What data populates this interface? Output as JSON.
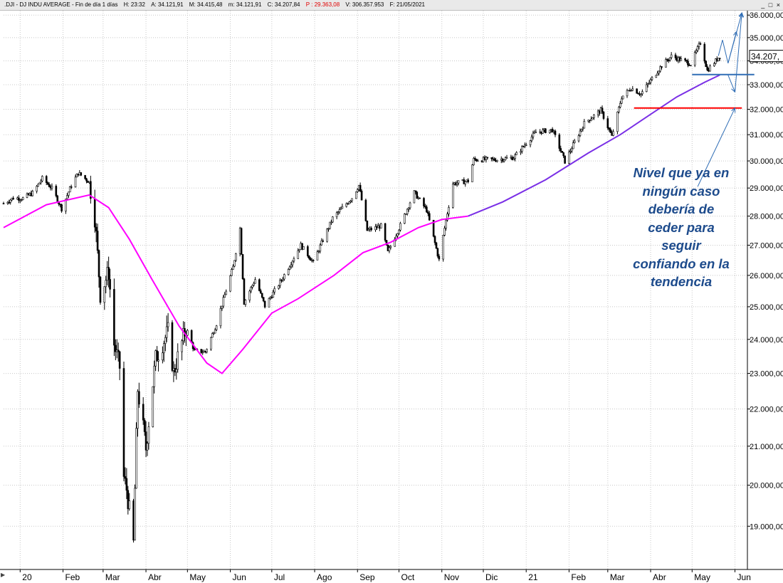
{
  "header": {
    "symbol": ".DJI - DJ INDU AVERAGE - Fin de día 1 días",
    "high": "H: 23:32",
    "ask": "A: 34.121,91",
    "max": "M: 34.415,48",
    "min": "m: 34.121,91",
    "close": "C: 34.207,84",
    "p": "P : 29.363,08",
    "volume": "V: 306.357.953",
    "date": "F: 21/05/2021",
    "p_color": "#e00000"
  },
  "window_controls": {
    "minimize": "_",
    "restore": "□",
    "close": "×"
  },
  "annotation": {
    "text_lines": [
      "Nivel que ya en",
      "ningún caso",
      "debería de",
      "ceder para",
      "seguir",
      "confiando en la",
      "tendencia"
    ],
    "color": "#1d4b8c"
  },
  "chart_data": {
    "type": "candlestick",
    "last_price_label": "34.207,",
    "ylim": [
      18000,
      36200
    ],
    "y_ticks": [
      19000,
      20000,
      21000,
      22000,
      23000,
      24000,
      25000,
      26000,
      27000,
      28000,
      29000,
      30000,
      31000,
      32000,
      33000,
      34000,
      35000,
      36000
    ],
    "y_tick_labels": [
      "19.000,00",
      "20.000,00",
      "21.000,00",
      "22.000,00",
      "23.000,00",
      "24.000,00",
      "25.000,00",
      "26.000,00",
      "27.000,00",
      "28.000,00",
      "29.000,00",
      "30.000,00",
      "31.000,00",
      "32.000,00",
      "33.000,00",
      "34.000,00",
      "35.000,00",
      "36.000,00"
    ],
    "x_labels": [
      "20",
      "Feb",
      "Mar",
      "Abr",
      "May",
      "Jun",
      "Jul",
      "Ago",
      "Sep",
      "Oct",
      "Nov",
      "Dic",
      "21",
      "Feb",
      "Mar",
      "Abr",
      "May",
      "Jun"
    ],
    "x_months": [
      "2020-01-01",
      "2020-02-01",
      "2020-03-01",
      "2020-04-01",
      "2020-05-01",
      "2020-06-01",
      "2020-07-01",
      "2020-08-01",
      "2020-09-01",
      "2020-10-01",
      "2020-11-01",
      "2020-12-01",
      "2021-01-01",
      "2021-02-01",
      "2021-03-01",
      "2021-04-01",
      "2021-05-01",
      "2021-06-01"
    ],
    "grid": true,
    "series": [
      {
        "kind": "close_path",
        "color": "#000000",
        "points": [
          [
            "2019-12-20",
            28450
          ],
          [
            "2019-12-27",
            28640
          ],
          [
            "2020-01-03",
            28630
          ],
          [
            "2020-01-10",
            28820
          ],
          [
            "2020-01-17",
            29350
          ],
          [
            "2020-01-24",
            28990
          ],
          [
            "2020-01-31",
            28260
          ],
          [
            "2020-02-07",
            29100
          ],
          [
            "2020-02-12",
            29550
          ],
          [
            "2020-02-20",
            29220
          ],
          [
            "2020-02-24",
            27960
          ],
          [
            "2020-02-28",
            25400
          ],
          [
            "2020-03-05",
            26120
          ],
          [
            "2020-03-09",
            23850
          ],
          [
            "2020-03-13",
            23180
          ],
          [
            "2020-03-16",
            20190
          ],
          [
            "2020-03-18",
            19900
          ],
          [
            "2020-03-23",
            18590
          ],
          [
            "2020-03-26",
            22550
          ],
          [
            "2020-04-01",
            20940
          ],
          [
            "2020-04-08",
            23430
          ],
          [
            "2020-04-17",
            24240
          ],
          [
            "2020-04-21",
            23020
          ],
          [
            "2020-04-30",
            24350
          ],
          [
            "2020-05-06",
            23660
          ],
          [
            "2020-05-14",
            23630
          ],
          [
            "2020-05-22",
            24470
          ],
          [
            "2020-06-03",
            26270
          ],
          [
            "2020-06-08",
            27570
          ],
          [
            "2020-06-11",
            25130
          ],
          [
            "2020-06-19",
            25870
          ],
          [
            "2020-06-26",
            25020
          ],
          [
            "2020-07-08",
            25850
          ],
          [
            "2020-07-22",
            27000
          ],
          [
            "2020-07-31",
            26430
          ],
          [
            "2020-08-14",
            27930
          ],
          [
            "2020-08-28",
            28650
          ],
          [
            "2020-09-02",
            29100
          ],
          [
            "2020-09-08",
            27500
          ],
          [
            "2020-09-18",
            27660
          ],
          [
            "2020-09-23",
            26760
          ],
          [
            "2020-10-02",
            27680
          ],
          [
            "2020-10-12",
            28840
          ],
          [
            "2020-10-21",
            28210
          ],
          [
            "2020-10-30",
            26500
          ],
          [
            "2020-11-04",
            27850
          ],
          [
            "2020-11-09",
            29160
          ],
          [
            "2020-11-20",
            29260
          ],
          [
            "2020-11-24",
            30050
          ],
          [
            "2020-12-11",
            30050
          ],
          [
            "2020-12-23",
            30130
          ],
          [
            "2021-01-08",
            31100
          ],
          [
            "2021-01-20",
            31190
          ],
          [
            "2021-01-29",
            29980
          ],
          [
            "2021-02-12",
            31450
          ],
          [
            "2021-02-24",
            31960
          ],
          [
            "2021-03-04",
            30920
          ],
          [
            "2021-03-11",
            32490
          ],
          [
            "2021-03-18",
            32860
          ],
          [
            "2021-03-25",
            32620
          ],
          [
            "2021-04-09",
            33800
          ],
          [
            "2021-04-16",
            34200
          ],
          [
            "2021-04-30",
            33870
          ],
          [
            "2021-05-07",
            34780
          ],
          [
            "2021-05-12",
            33590
          ],
          [
            "2021-05-21",
            34207
          ]
        ]
      },
      {
        "kind": "moving_average",
        "color": "#ff00ff",
        "points": [
          [
            "2019-12-20",
            27600
          ],
          [
            "2020-01-20",
            28400
          ],
          [
            "2020-02-20",
            28750
          ],
          [
            "2020-03-05",
            28300
          ],
          [
            "2020-03-20",
            27200
          ],
          [
            "2020-04-05",
            25900
          ],
          [
            "2020-04-25",
            24400
          ],
          [
            "2020-05-15",
            23300
          ],
          [
            "2020-05-26",
            23000
          ],
          [
            "2020-06-10",
            23700
          ],
          [
            "2020-07-01",
            24800
          ],
          [
            "2020-07-20",
            25250
          ],
          [
            "2020-08-15",
            26000
          ],
          [
            "2020-09-05",
            26750
          ],
          [
            "2020-09-25",
            27100
          ],
          [
            "2020-10-15",
            27600
          ],
          [
            "2020-11-01",
            27880
          ],
          [
            "2020-11-20",
            28000
          ]
        ]
      },
      {
        "kind": "moving_average",
        "color": "#7a2fe6",
        "points": [
          [
            "2020-11-20",
            28000
          ],
          [
            "2020-12-15",
            28500
          ],
          [
            "2021-01-15",
            29300
          ],
          [
            "2021-02-15",
            30300
          ],
          [
            "2021-03-10",
            31000
          ],
          [
            "2021-04-01",
            31800
          ],
          [
            "2021-04-20",
            32500
          ],
          [
            "2021-05-10",
            33100
          ],
          [
            "2021-05-21",
            33400
          ]
        ]
      }
    ],
    "levels": [
      {
        "name": "support",
        "value": 32050,
        "from": "2021-03-20",
        "to": "2021-06-06",
        "color": "#ff0000"
      },
      {
        "name": "ma_break",
        "value": 33420,
        "from": "2021-05-01",
        "to": "2021-06-15",
        "color": "#2f6db5"
      }
    ],
    "scenario_arrows": [
      [
        [
          "2021-05-20",
          34210
        ],
        [
          "2021-05-23",
          34900
        ],
        [
          "2021-05-27",
          33900
        ],
        [
          "2021-06-02",
          35260
        ]
      ],
      [
        [
          "2021-05-27",
          33900
        ],
        [
          "2021-06-06",
          36100
        ]
      ],
      [
        [
          "2021-05-27",
          33400
        ],
        [
          "2021-06-01",
          32700
        ]
      ],
      [
        [
          "2021-06-01",
          32700
        ],
        [
          "2021-06-06",
          36100
        ]
      ],
      [
        [
          "2021-05-05",
          29050
        ],
        [
          "2021-06-01",
          32050
        ]
      ]
    ]
  }
}
